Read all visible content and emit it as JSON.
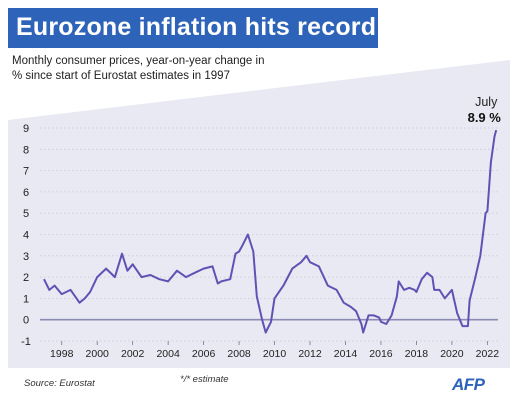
{
  "title": "Eurozone inflation hits record",
  "subtitle": "Monthly consumer prices, year-on-year change in % since start of Eurostat estimates in 1997",
  "source": "Source: Eurostat",
  "footnote": "*/* estimate",
  "brand": "AFP",
  "colors": {
    "title_bg": "#2d63b8",
    "line": "#6251b4",
    "plot_bg": "#e8e9f2",
    "zero_line": "#8a8ab4"
  },
  "chart_data": {
    "type": "line",
    "title": "Eurozone inflation hits record",
    "xlabel": "",
    "ylabel": "",
    "xlim": [
      1997,
      2022.6
    ],
    "ylim": [
      -1,
      9
    ],
    "x_ticks": [
      1998,
      2000,
      2002,
      2004,
      2006,
      2008,
      2010,
      2012,
      2014,
      2016,
      2018,
      2020,
      2022
    ],
    "y_ticks": [
      -1,
      0,
      1,
      2,
      3,
      4,
      5,
      6,
      7,
      8,
      9
    ],
    "grid": true,
    "legend": "none",
    "annotations": [
      {
        "label": "July",
        "value": "8.9 %",
        "x": 2022.5,
        "y": 8.9
      }
    ],
    "series": [
      {
        "x": [
          1997.0,
          1997.3,
          1997.6,
          1998.0,
          1998.5,
          1999.0,
          1999.3,
          1999.6,
          2000.0,
          2000.5,
          2001.0,
          2001.4,
          2001.7,
          2002.0,
          2002.5,
          2003.0,
          2003.5,
          2004.0,
          2004.5,
          2005.0,
          2005.5,
          2006.0,
          2006.5,
          2006.8,
          2007.0,
          2007.5,
          2007.8,
          2008.0,
          2008.2,
          2008.5,
          2008.8,
          2009.0,
          2009.3,
          2009.5,
          2009.8,
          2010.0,
          2010.5,
          2011.0,
          2011.5,
          2011.8,
          2012.0,
          2012.5,
          2013.0,
          2013.5,
          2013.9,
          2014.3,
          2014.6,
          2014.9,
          2015.0,
          2015.3,
          2015.6,
          2015.9,
          2016.0,
          2016.3,
          2016.6,
          2016.9,
          2017.0,
          2017.3,
          2017.6,
          2017.9,
          2018.0,
          2018.3,
          2018.6,
          2018.9,
          2019.0,
          2019.3,
          2019.6,
          2019.9,
          2020.0,
          2020.3,
          2020.6,
          2020.9,
          2021.0,
          2021.3,
          2021.6,
          2021.9,
          2022.0,
          2022.2,
          2022.4,
          2022.5
        ],
        "values": [
          1.9,
          1.4,
          1.6,
          1.2,
          1.4,
          0.8,
          1.0,
          1.3,
          2.0,
          2.4,
          2.0,
          3.1,
          2.3,
          2.6,
          2.0,
          2.1,
          1.9,
          1.8,
          2.3,
          2.0,
          2.2,
          2.4,
          2.5,
          1.7,
          1.8,
          1.9,
          3.1,
          3.2,
          3.5,
          4.0,
          3.2,
          1.1,
          0.0,
          -0.6,
          -0.1,
          1.0,
          1.6,
          2.4,
          2.7,
          3.0,
          2.7,
          2.5,
          1.6,
          1.4,
          0.8,
          0.6,
          0.4,
          -0.2,
          -0.6,
          0.2,
          0.2,
          0.1,
          -0.1,
          -0.2,
          0.2,
          1.1,
          1.8,
          1.4,
          1.5,
          1.4,
          1.3,
          1.9,
          2.2,
          2.0,
          1.4,
          1.4,
          1.0,
          1.3,
          1.4,
          0.3,
          -0.3,
          -0.3,
          0.9,
          1.9,
          3.0,
          5.0,
          5.1,
          7.4,
          8.6,
          8.9
        ]
      }
    ]
  }
}
